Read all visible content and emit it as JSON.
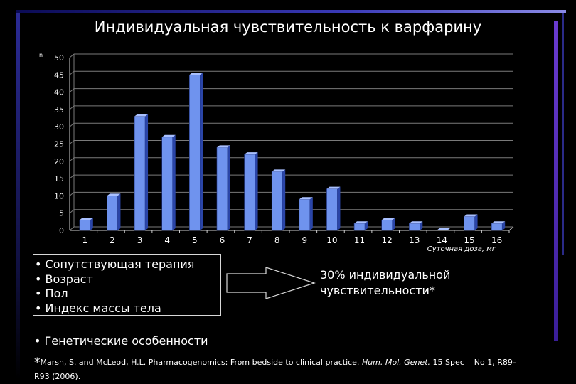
{
  "title": "Индивидуальная чувствительность к варфарину",
  "chart_data": {
    "type": "bar",
    "title": "Индивидуальная чувствительность к варфарину",
    "ylabel": "n",
    "xlabel": "Суточная доза, мг",
    "categories": [
      "1",
      "2",
      "3",
      "4",
      "5",
      "6",
      "7",
      "8",
      "9",
      "10",
      "11",
      "12",
      "13",
      "14",
      "15",
      "16"
    ],
    "values": [
      3,
      10,
      33,
      27,
      45,
      24,
      22,
      17,
      9,
      12,
      2,
      3,
      2,
      0,
      4,
      2
    ],
    "ylim": [
      0,
      50
    ],
    "yticks": [
      0,
      5,
      10,
      15,
      20,
      25,
      30,
      35,
      40,
      45,
      50
    ],
    "grid": true,
    "bar_color": "#6f93ee",
    "bar_side_color": "#2a45a8",
    "bar_top_color": "#a9c0ff"
  },
  "factors": {
    "items": [
      "Сопутствующая терапия",
      "Возраст",
      "Пол",
      "Индекс массы тела"
    ],
    "bullet": "•"
  },
  "result_text": [
    "30% индивидуальной",
    "чувствительности*"
  ],
  "genetic": "Генетические особенности",
  "reference": {
    "star": "*",
    "authors": "Marsh, S. and McLeod, H.L. Pharmacogenomics: From bedside to clinical practice.",
    "journal": "Hum. Mol. Genet.",
    "issue_a": "15 Spec",
    "issue_b": "No 1, R89–",
    "pages": "R93 (2006)."
  },
  "colors": {
    "background": "#000000",
    "accent_blue": "#3a3ab8",
    "accent_purple": "#6a3bd0"
  }
}
